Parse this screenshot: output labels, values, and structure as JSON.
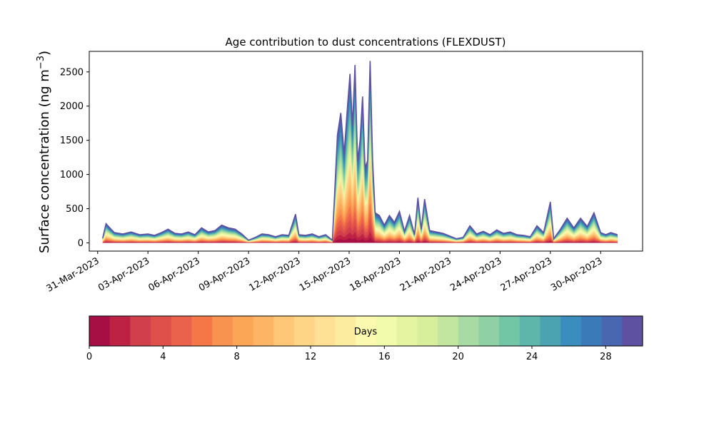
{
  "chart_data": {
    "type": "area",
    "title": "Age contribution to dust concentrations (FLEXDUST)",
    "ylabel": "Surface concentration (ng m",
    "ylabel_sup": "−3",
    "ylabel_close": ")",
    "xlabel": "",
    "ylim": [
      -120,
      2800
    ],
    "yticks": [
      0,
      500,
      1000,
      1500,
      2000,
      2500
    ],
    "xlim_days": [
      -0.5,
      32.5
    ],
    "xticks": [
      {
        "day": 0,
        "label": "31-Mar-2023"
      },
      {
        "day": 3,
        "label": "03-Apr-2023"
      },
      {
        "day": 6,
        "label": "06-Apr-2023"
      },
      {
        "day": 9,
        "label": "09-Apr-2023"
      },
      {
        "day": 12,
        "label": "12-Apr-2023"
      },
      {
        "day": 15,
        "label": "15-Apr-2023"
      },
      {
        "day": 18,
        "label": "18-Apr-2023"
      },
      {
        "day": 21,
        "label": "21-Apr-2023"
      },
      {
        "day": 24,
        "label": "24-Apr-2023"
      },
      {
        "day": 27,
        "label": "27-Apr-2023"
      },
      {
        "day": 30,
        "label": "30-Apr-2023"
      }
    ],
    "grid": false,
    "colorbar": {
      "label": "Days",
      "range": [
        0,
        30
      ],
      "ticks": [
        0,
        4,
        8,
        12,
        16,
        20,
        24,
        28
      ],
      "colors": [
        "#a50f44",
        "#bd2245",
        "#d23f4c",
        "#df504a",
        "#ea624c",
        "#f57748",
        "#f8934f",
        "#fba557",
        "#fdb565",
        "#fec777",
        "#fed487",
        "#fee195",
        "#fbeca0",
        "#fbf8b0",
        "#f2faab",
        "#e5f4a0",
        "#d7ef9b",
        "#c2e6a0",
        "#a8dba3",
        "#8fd1a4",
        "#73c6a5",
        "#5eb6ab",
        "#4ba2b1",
        "#3a8ebd",
        "#3a7ab8",
        "#4867b0",
        "#5e51a2"
      ]
    },
    "total_series": [
      {
        "day": 0.3,
        "value": 70
      },
      {
        "day": 0.5,
        "value": 280
      },
      {
        "day": 0.8,
        "value": 200
      },
      {
        "day": 1.0,
        "value": 150
      },
      {
        "day": 1.5,
        "value": 130
      },
      {
        "day": 2.0,
        "value": 160
      },
      {
        "day": 2.5,
        "value": 120
      },
      {
        "day": 3.0,
        "value": 130
      },
      {
        "day": 3.4,
        "value": 110
      },
      {
        "day": 3.8,
        "value": 150
      },
      {
        "day": 4.2,
        "value": 200
      },
      {
        "day": 4.6,
        "value": 140
      },
      {
        "day": 5.0,
        "value": 130
      },
      {
        "day": 5.4,
        "value": 160
      },
      {
        "day": 5.8,
        "value": 120
      },
      {
        "day": 6.2,
        "value": 220
      },
      {
        "day": 6.6,
        "value": 160
      },
      {
        "day": 7.0,
        "value": 180
      },
      {
        "day": 7.4,
        "value": 260
      },
      {
        "day": 7.8,
        "value": 220
      },
      {
        "day": 8.2,
        "value": 200
      },
      {
        "day": 8.6,
        "value": 130
      },
      {
        "day": 9.0,
        "value": 40
      },
      {
        "day": 9.4,
        "value": 80
      },
      {
        "day": 9.8,
        "value": 130
      },
      {
        "day": 10.2,
        "value": 120
      },
      {
        "day": 10.6,
        "value": 90
      },
      {
        "day": 11.0,
        "value": 120
      },
      {
        "day": 11.4,
        "value": 110
      },
      {
        "day": 11.8,
        "value": 420
      },
      {
        "day": 12.0,
        "value": 120
      },
      {
        "day": 12.4,
        "value": 110
      },
      {
        "day": 12.8,
        "value": 130
      },
      {
        "day": 13.2,
        "value": 90
      },
      {
        "day": 13.6,
        "value": 120
      },
      {
        "day": 14.0,
        "value": 40
      },
      {
        "day": 14.3,
        "value": 1580
      },
      {
        "day": 14.5,
        "value": 1900
      },
      {
        "day": 14.7,
        "value": 1300
      },
      {
        "day": 14.9,
        "value": 2000
      },
      {
        "day": 15.05,
        "value": 2470
      },
      {
        "day": 15.2,
        "value": 1700
      },
      {
        "day": 15.35,
        "value": 2600
      },
      {
        "day": 15.5,
        "value": 1200
      },
      {
        "day": 15.65,
        "value": 1500
      },
      {
        "day": 15.8,
        "value": 2140
      },
      {
        "day": 15.95,
        "value": 1100
      },
      {
        "day": 16.1,
        "value": 1200
      },
      {
        "day": 16.25,
        "value": 2660
      },
      {
        "day": 16.4,
        "value": 1200
      },
      {
        "day": 16.55,
        "value": 440
      },
      {
        "day": 16.8,
        "value": 400
      },
      {
        "day": 17.1,
        "value": 260
      },
      {
        "day": 17.4,
        "value": 400
      },
      {
        "day": 17.7,
        "value": 300
      },
      {
        "day": 18.0,
        "value": 460
      },
      {
        "day": 18.3,
        "value": 170
      },
      {
        "day": 18.6,
        "value": 400
      },
      {
        "day": 18.9,
        "value": 120
      },
      {
        "day": 19.1,
        "value": 660
      },
      {
        "day": 19.3,
        "value": 200
      },
      {
        "day": 19.5,
        "value": 640
      },
      {
        "day": 19.8,
        "value": 180
      },
      {
        "day": 20.2,
        "value": 160
      },
      {
        "day": 20.6,
        "value": 140
      },
      {
        "day": 21.0,
        "value": 100
      },
      {
        "day": 21.4,
        "value": 60
      },
      {
        "day": 21.8,
        "value": 80
      },
      {
        "day": 22.2,
        "value": 250
      },
      {
        "day": 22.6,
        "value": 130
      },
      {
        "day": 23.0,
        "value": 170
      },
      {
        "day": 23.4,
        "value": 120
      },
      {
        "day": 23.8,
        "value": 190
      },
      {
        "day": 24.2,
        "value": 140
      },
      {
        "day": 24.6,
        "value": 160
      },
      {
        "day": 25.0,
        "value": 120
      },
      {
        "day": 25.4,
        "value": 110
      },
      {
        "day": 25.8,
        "value": 90
      },
      {
        "day": 26.2,
        "value": 250
      },
      {
        "day": 26.6,
        "value": 150
      },
      {
        "day": 27.0,
        "value": 600
      },
      {
        "day": 27.2,
        "value": 60
      },
      {
        "day": 27.6,
        "value": 200
      },
      {
        "day": 28.0,
        "value": 360
      },
      {
        "day": 28.4,
        "value": 220
      },
      {
        "day": 28.8,
        "value": 360
      },
      {
        "day": 29.2,
        "value": 240
      },
      {
        "day": 29.6,
        "value": 440
      },
      {
        "day": 30.0,
        "value": 150
      },
      {
        "day": 30.3,
        "value": 120
      },
      {
        "day": 30.6,
        "value": 150
      },
      {
        "day": 31.0,
        "value": 120
      }
    ]
  }
}
